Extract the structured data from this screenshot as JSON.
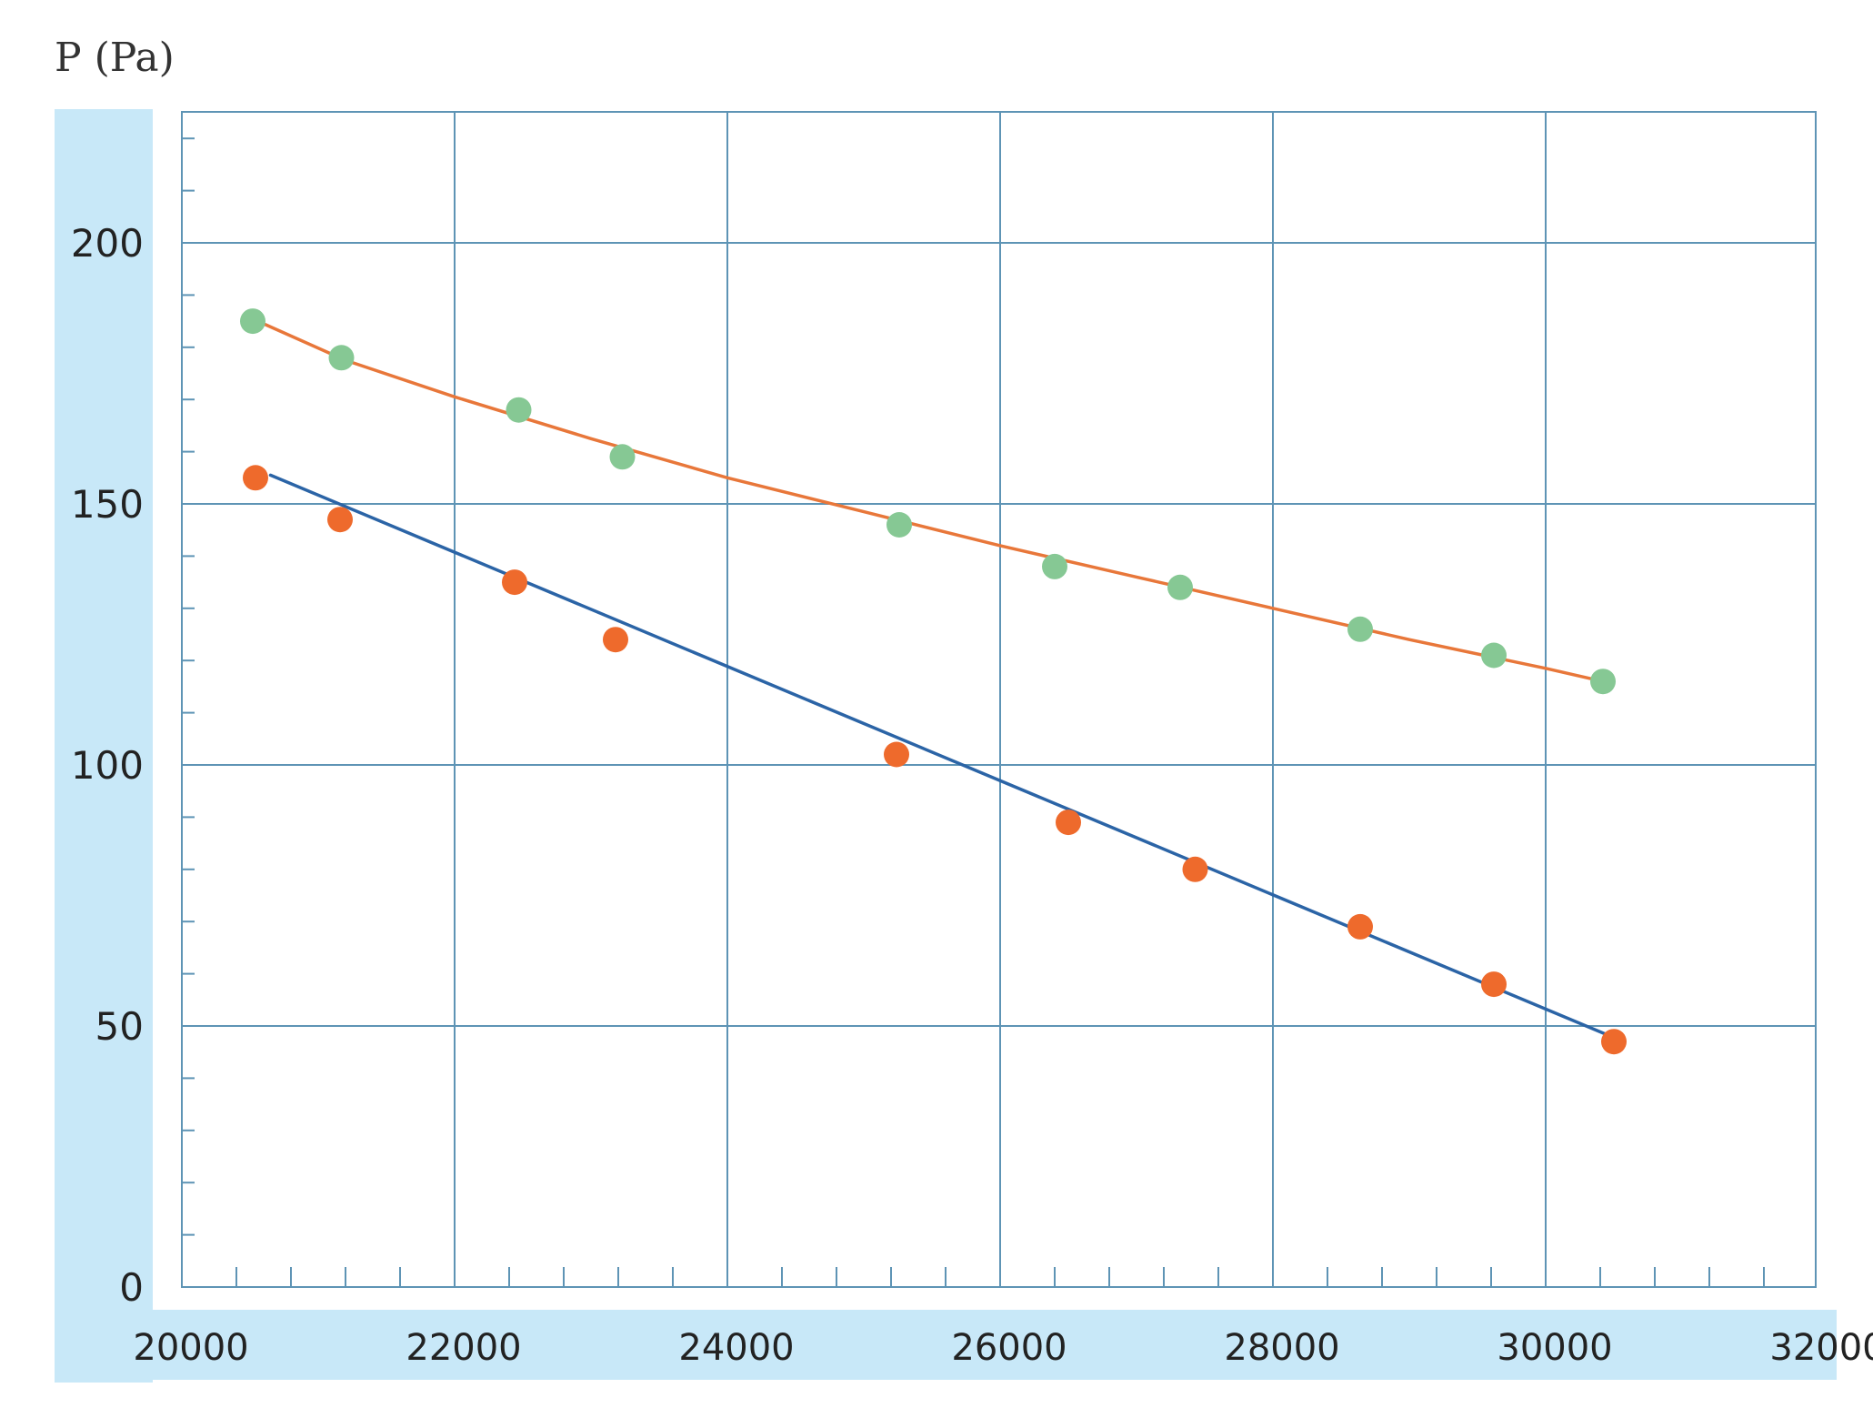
{
  "chart_data": {
    "type": "line",
    "title": "",
    "ylabel": "P (Pa)",
    "xlabel": "",
    "xlim": [
      20000,
      32000
    ],
    "ylim": [
      0,
      225
    ],
    "x_ticks": [
      "20000",
      "22000",
      "24000",
      "26000",
      "28000",
      "30000",
      "32000"
    ],
    "y_ticks": [
      "0",
      "50",
      "100",
      "150",
      "200"
    ],
    "grid": true,
    "series": [
      {
        "name": "",
        "color_points": "#86c894",
        "color_line": "#e8773a",
        "points": [
          [
            20520,
            185
          ],
          [
            21170,
            178
          ],
          [
            22470,
            168
          ],
          [
            23230,
            159
          ],
          [
            25260,
            146
          ],
          [
            26400,
            138
          ],
          [
            27320,
            134
          ],
          [
            28640,
            126
          ],
          [
            29620,
            121
          ],
          [
            30420,
            116
          ]
        ],
        "fit": [
          [
            20600,
            184.5
          ],
          [
            21200,
            177.5
          ],
          [
            22000,
            170.5
          ],
          [
            23000,
            162.5
          ],
          [
            24000,
            155
          ],
          [
            25000,
            148.5
          ],
          [
            26000,
            142
          ],
          [
            27000,
            136
          ],
          [
            28000,
            130
          ],
          [
            29000,
            124
          ],
          [
            30000,
            118.5
          ],
          [
            30420,
            116
          ]
        ]
      },
      {
        "name": "",
        "color_points": "#ee6a2c",
        "color_line": "#2b64a6",
        "points": [
          [
            20540,
            155
          ],
          [
            21160,
            147
          ],
          [
            22440,
            135
          ],
          [
            23180,
            124
          ],
          [
            25240,
            102
          ],
          [
            26500,
            89
          ],
          [
            27430,
            80
          ],
          [
            28640,
            69
          ],
          [
            29620,
            58
          ],
          [
            30500,
            47
          ]
        ],
        "fit": [
          [
            20650,
            155.5
          ],
          [
            30480,
            48
          ]
        ]
      }
    ],
    "colors": {
      "grid": "#5e94b5",
      "axis_band": "#c8e8f8",
      "text": "#222222"
    }
  }
}
